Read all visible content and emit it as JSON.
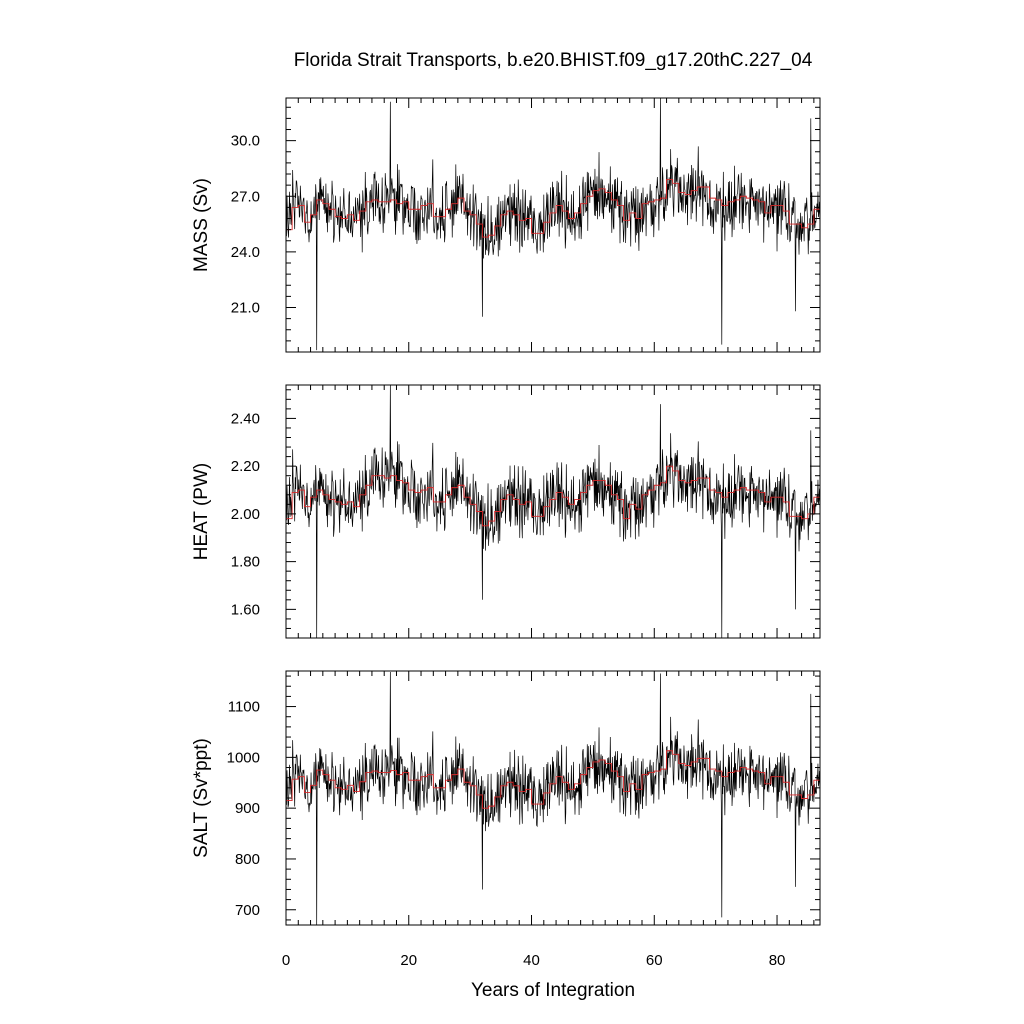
{
  "chart_data": {
    "type": "line",
    "title": "Florida Strait Transports, b.e20.BHIST.f09_g17.20thC.227_04",
    "xlabel": "Years of Integration",
    "x_ticks": [
      0,
      20,
      40,
      60,
      80
    ],
    "xlim": [
      0,
      87
    ],
    "panels": [
      {
        "ylabel": "MASS (Sv)",
        "ylim": [
          18.6,
          32.3
        ],
        "y_ticks": [
          21.0,
          24.0,
          27.0,
          30.0
        ],
        "y_tick_labels": [
          "21.0",
          "24.0",
          "27.0",
          "30.0"
        ],
        "raw_mean": 25.9,
        "raw_amplitude": 1.4,
        "annual_mean": [
          25.2,
          26.4,
          26.5,
          25.6,
          26.0,
          26.8,
          26.6,
          26.3,
          25.9,
          25.8,
          26.0,
          25.7,
          26.2,
          26.7,
          26.8,
          26.7,
          26.7,
          26.8,
          26.6,
          26.7,
          26.3,
          26.3,
          26.5,
          26.6,
          25.9,
          25.9,
          26.3,
          26.6,
          26.9,
          26.2,
          26.0,
          25.5,
          24.8,
          24.9,
          25.4,
          26.0,
          26.2,
          26.0,
          25.7,
          25.8,
          25.0,
          25.0,
          25.6,
          26.1,
          26.5,
          26.2,
          25.8,
          26.1,
          26.6,
          27.0,
          27.3,
          27.4,
          27.2,
          26.8,
          26.5,
          25.7,
          26.1,
          25.8,
          26.6,
          26.7,
          26.8,
          26.9,
          27.9,
          27.7,
          27.2,
          27.1,
          27.3,
          27.5,
          27.5,
          26.9,
          26.8,
          26.5,
          26.7,
          26.8,
          27.0,
          26.9,
          26.8,
          26.7,
          26.1,
          26.5,
          26.5,
          26.2,
          25.5,
          25.5,
          25.3,
          25.5,
          26.3
        ],
        "spikes": [
          [
            5,
            18.7
          ],
          [
            17,
            32.1
          ],
          [
            32,
            20.5
          ],
          [
            61,
            32.3
          ],
          [
            71,
            19.0
          ],
          [
            83,
            20.8
          ],
          [
            85.5,
            31.2
          ]
        ]
      },
      {
        "ylabel": "HEAT (PW)",
        "ylim": [
          1.48,
          2.54
        ],
        "y_ticks": [
          1.6,
          1.8,
          2.0,
          2.2,
          2.4
        ],
        "y_tick_labels": [
          "1.60",
          "1.80",
          "2.00",
          "2.20",
          "2.40"
        ],
        "raw_mean": 2.06,
        "raw_amplitude": 0.11,
        "annual_mean": [
          1.98,
          2.09,
          2.1,
          2.03,
          2.07,
          2.1,
          2.08,
          2.06,
          2.05,
          2.04,
          2.05,
          2.03,
          2.08,
          2.12,
          2.16,
          2.16,
          2.15,
          2.16,
          2.14,
          2.13,
          2.1,
          2.09,
          2.1,
          2.11,
          2.05,
          2.05,
          2.08,
          2.11,
          2.12,
          2.07,
          2.04,
          2.01,
          1.95,
          1.97,
          2.01,
          2.06,
          2.08,
          2.06,
          2.04,
          2.05,
          1.99,
          1.99,
          2.03,
          2.06,
          2.09,
          2.07,
          2.04,
          2.06,
          2.09,
          2.12,
          2.14,
          2.14,
          2.12,
          2.08,
          2.06,
          1.98,
          2.04,
          2.02,
          2.08,
          2.1,
          2.12,
          2.13,
          2.2,
          2.18,
          2.14,
          2.13,
          2.14,
          2.15,
          2.15,
          2.1,
          2.09,
          2.07,
          2.09,
          2.1,
          2.11,
          2.1,
          2.1,
          2.09,
          2.05,
          2.07,
          2.07,
          2.05,
          1.99,
          1.99,
          1.98,
          2.0,
          2.07
        ],
        "spikes": [
          [
            5,
            1.48
          ],
          [
            17,
            2.54
          ],
          [
            32,
            1.64
          ],
          [
            61,
            2.46
          ],
          [
            71,
            1.48
          ],
          [
            83,
            1.6
          ],
          [
            85.5,
            2.35
          ]
        ]
      },
      {
        "ylabel": "SALT (Sv*ppt)",
        "ylim": [
          670,
          1170
        ],
        "y_ticks": [
          700,
          800,
          900,
          1000,
          1100
        ],
        "y_tick_labels": [
          "700",
          "800",
          "900",
          "1000",
          "1100"
        ],
        "raw_mean": 940,
        "raw_amplitude": 50,
        "annual_mean": [
          915,
          957,
          962,
          931,
          945,
          975,
          966,
          955,
          940,
          937,
          945,
          933,
          952,
          970,
          973,
          970,
          970,
          974,
          966,
          970,
          955,
          955,
          962,
          966,
          940,
          940,
          955,
          966,
          977,
          951,
          944,
          926,
          900,
          904,
          922,
          944,
          951,
          944,
          933,
          937,
          908,
          908,
          930,
          948,
          962,
          951,
          937,
          948,
          966,
          980,
          991,
          995,
          988,
          973,
          962,
          933,
          948,
          937,
          966,
          970,
          973,
          977,
          1013,
          1006,
          988,
          984,
          991,
          998,
          998,
          977,
          973,
          962,
          970,
          973,
          980,
          977,
          973,
          970,
          948,
          962,
          962,
          951,
          926,
          926,
          919,
          926,
          955
        ],
        "spikes": [
          [
            5,
            670
          ],
          [
            17,
            1168
          ],
          [
            32,
            740
          ],
          [
            61,
            1165
          ],
          [
            71,
            685
          ],
          [
            83,
            745
          ],
          [
            85.5,
            1125
          ]
        ]
      }
    ],
    "series": [
      {
        "name": "",
        "color": "#000000",
        "kind": "monthly"
      },
      {
        "name": "",
        "color": "#d62728",
        "kind": "annual mean"
      }
    ],
    "grid": false,
    "legend": false
  }
}
